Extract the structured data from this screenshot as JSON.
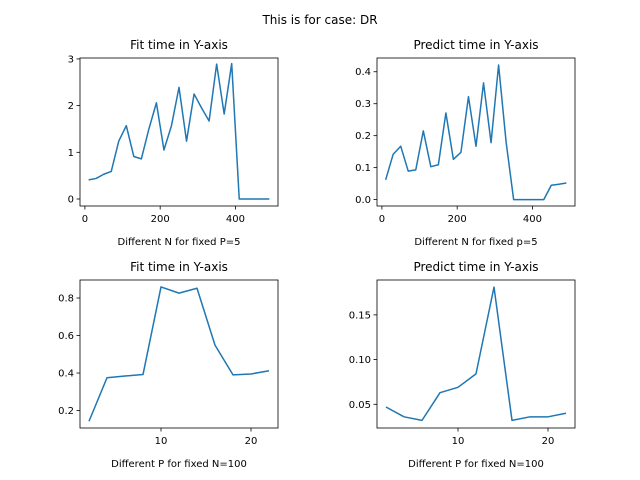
{
  "suptitle": "This is for case: DR",
  "chart_data": [
    {
      "type": "line",
      "title": "Fit time in Y-axis",
      "xlabel": "Different N for fixed P=5",
      "ylabel": "",
      "xlim": [
        -13,
        513
      ],
      "ylim": [
        -0.15,
        3.02
      ],
      "xticks": [
        0,
        200,
        400
      ],
      "yticks": [
        0,
        1,
        2,
        3
      ],
      "ytick_labels": [
        "0",
        "1",
        "2",
        "3"
      ],
      "grid": false,
      "color": "#1f77b4",
      "series": [
        {
          "x": [
            10,
            30,
            50,
            70,
            90,
            110,
            130,
            150,
            170,
            190,
            210,
            230,
            250,
            270,
            290,
            310,
            330,
            350,
            370,
            390,
            410,
            430,
            450,
            470,
            490
          ],
          "y": [
            0.41,
            0.44,
            0.53,
            0.59,
            1.24,
            1.57,
            0.91,
            0.86,
            1.5,
            2.06,
            1.05,
            1.57,
            2.39,
            1.24,
            2.25,
            1.95,
            1.67,
            2.89,
            1.82,
            2.9,
            0.0,
            0.0,
            0.0,
            0.0,
            0.0
          ]
        }
      ]
    },
    {
      "type": "line",
      "title": "Predict time in Y-axis",
      "xlabel": "Different N for fixed p=5",
      "ylabel": "",
      "xlim": [
        -13,
        513
      ],
      "ylim": [
        -0.02,
        0.443
      ],
      "xticks": [
        0,
        200,
        400
      ],
      "yticks": [
        0.0,
        0.1,
        0.2,
        0.3,
        0.4
      ],
      "ytick_labels": [
        "0.0",
        "0.1",
        "0.2",
        "0.3",
        "0.4"
      ],
      "grid": false,
      "color": "#1f77b4",
      "series": [
        {
          "x": [
            10,
            30,
            50,
            70,
            90,
            110,
            130,
            150,
            170,
            190,
            210,
            230,
            250,
            270,
            290,
            310,
            330,
            350,
            370,
            390,
            410,
            430,
            450,
            470,
            490
          ],
          "y": [
            0.062,
            0.142,
            0.167,
            0.089,
            0.093,
            0.215,
            0.103,
            0.109,
            0.271,
            0.126,
            0.148,
            0.322,
            0.167,
            0.365,
            0.178,
            0.421,
            0.18,
            0.0,
            0.0,
            0.0,
            0.0,
            0.0,
            0.045,
            0.048,
            0.052
          ]
        }
      ]
    },
    {
      "type": "line",
      "title": "Fit time in Y-axis",
      "xlabel": "Different P for fixed N=100",
      "ylabel": "",
      "xlim": [
        1.0,
        23.0
      ],
      "ylim": [
        0.107,
        0.896
      ],
      "xticks": [
        10,
        20
      ],
      "yticks": [
        0.2,
        0.4,
        0.6,
        0.8
      ],
      "ytick_labels": [
        "0.2",
        "0.4",
        "0.6",
        "0.8"
      ],
      "grid": false,
      "color": "#1f77b4",
      "series": [
        {
          "x": [
            2,
            4,
            6,
            8,
            10,
            12,
            14,
            16,
            18,
            20,
            22
          ],
          "y": [
            0.143,
            0.375,
            0.384,
            0.392,
            0.859,
            0.826,
            0.852,
            0.549,
            0.39,
            0.395,
            0.412
          ]
        }
      ]
    },
    {
      "type": "line",
      "title": "Predict time in Y-axis",
      "xlabel": "Different P for fixed N=100",
      "ylabel": "",
      "xlim": [
        1.0,
        23.0
      ],
      "ylim": [
        0.0235,
        0.189
      ],
      "xticks": [
        10,
        20
      ],
      "yticks": [
        0.05,
        0.1,
        0.15
      ],
      "ytick_labels": [
        "0.05",
        "0.10",
        "0.15"
      ],
      "grid": false,
      "color": "#1f77b4",
      "series": [
        {
          "x": [
            2,
            4,
            6,
            8,
            10,
            12,
            14,
            16,
            18,
            20,
            22
          ],
          "y": [
            0.047,
            0.036,
            0.032,
            0.063,
            0.069,
            0.084,
            0.181,
            0.032,
            0.036,
            0.036,
            0.04
          ]
        }
      ]
    }
  ]
}
